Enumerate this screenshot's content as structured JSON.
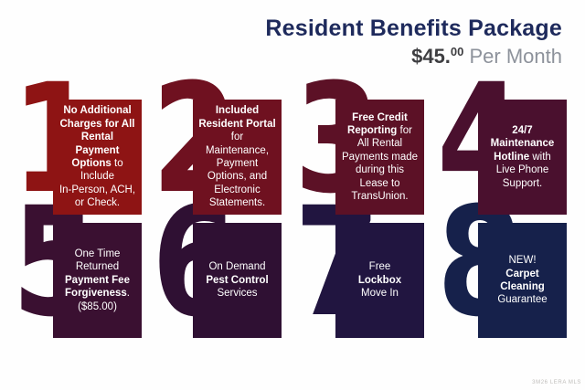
{
  "header": {
    "title": "Resident Benefits Package",
    "price_dollars": "$45.",
    "price_cents": "00",
    "price_suffix": " Per Month"
  },
  "colors": {
    "title_navy": "#1e2a5c",
    "price_dark": "#3e3e41",
    "price_gray": "#8d929b"
  },
  "watermark": "3M26 LERA MLS",
  "items": [
    {
      "number": "1",
      "color": "#8e1414",
      "lines": [
        [
          {
            "t": "No Additional",
            "b": true
          }
        ],
        [
          {
            "t": "Charges for All",
            "b": true
          }
        ],
        [
          {
            "t": "Rental",
            "b": true
          }
        ],
        [
          {
            "t": "Payment",
            "b": true
          }
        ],
        [
          {
            "t": "Options",
            "b": true
          },
          {
            "t": " to",
            "b": false
          }
        ],
        [
          {
            "t": "Include",
            "b": false
          }
        ],
        [
          {
            "t": "In-Person, ACH,",
            "b": false
          }
        ],
        [
          {
            "t": "or Check.",
            "b": false
          }
        ]
      ]
    },
    {
      "number": "2",
      "color": "#6f1120",
      "lines": [
        [
          {
            "t": "Included",
            "b": true
          }
        ],
        [
          {
            "t": "Resident Portal",
            "b": true
          }
        ],
        [
          {
            "t": "for",
            "b": false
          }
        ],
        [
          {
            "t": "Maintenance,",
            "b": false
          }
        ],
        [
          {
            "t": "Payment",
            "b": false
          }
        ],
        [
          {
            "t": "Options, and",
            "b": false
          }
        ],
        [
          {
            "t": "Electronic",
            "b": false
          }
        ],
        [
          {
            "t": "Statements.",
            "b": false
          }
        ]
      ]
    },
    {
      "number": "3",
      "color": "#5c1126",
      "lines": [
        [
          {
            "t": "Free Credit",
            "b": true
          }
        ],
        [
          {
            "t": "Reporting",
            "b": true
          },
          {
            "t": " for",
            "b": false
          }
        ],
        [
          {
            "t": "All Rental",
            "b": false
          }
        ],
        [
          {
            "t": "Payments made",
            "b": false
          }
        ],
        [
          {
            "t": "during this",
            "b": false
          }
        ],
        [
          {
            "t": "Lease to",
            "b": false
          }
        ],
        [
          {
            "t": "TransUnion.",
            "b": false
          }
        ]
      ]
    },
    {
      "number": "4",
      "color": "#4a102e",
      "lines": [
        [
          {
            "t": "24/7",
            "b": true
          }
        ],
        [
          {
            "t": "Maintenance",
            "b": true
          }
        ],
        [
          {
            "t": "Hotline",
            "b": true
          },
          {
            "t": " with",
            "b": false
          }
        ],
        [
          {
            "t": "Live Phone",
            "b": false
          }
        ],
        [
          {
            "t": "Support.",
            "b": false
          }
        ]
      ]
    },
    {
      "number": "5",
      "color": "#3a1031",
      "lines": [
        [
          {
            "t": "One Time",
            "b": false
          }
        ],
        [
          {
            "t": "Returned",
            "b": false
          }
        ],
        [
          {
            "t": "Payment Fee",
            "b": true
          }
        ],
        [
          {
            "t": "Forgiveness",
            "b": true
          },
          {
            "t": ".",
            "b": false
          }
        ],
        [
          {
            "t": "($85.00)",
            "b": false
          }
        ]
      ]
    },
    {
      "number": "6",
      "color": "#2f1033",
      "lines": [
        [
          {
            "t": "On Demand",
            "b": false
          }
        ],
        [
          {
            "t": "Pest Control",
            "b": true
          }
        ],
        [
          {
            "t": "Services",
            "b": false
          }
        ]
      ]
    },
    {
      "number": "7",
      "color": "#211540",
      "lines": [
        [
          {
            "t": "Free",
            "b": false
          }
        ],
        [
          {
            "t": "Lockbox",
            "b": true
          }
        ],
        [
          {
            "t": "Move In",
            "b": false
          }
        ]
      ]
    },
    {
      "number": "8",
      "color": "#16214b",
      "lines": [
        [
          {
            "t": "NEW!",
            "b": false
          }
        ],
        [
          {
            "t": "Carpet",
            "b": true
          }
        ],
        [
          {
            "t": "Cleaning",
            "b": true
          }
        ],
        [
          {
            "t": "Guarantee",
            "b": false
          }
        ]
      ]
    }
  ]
}
